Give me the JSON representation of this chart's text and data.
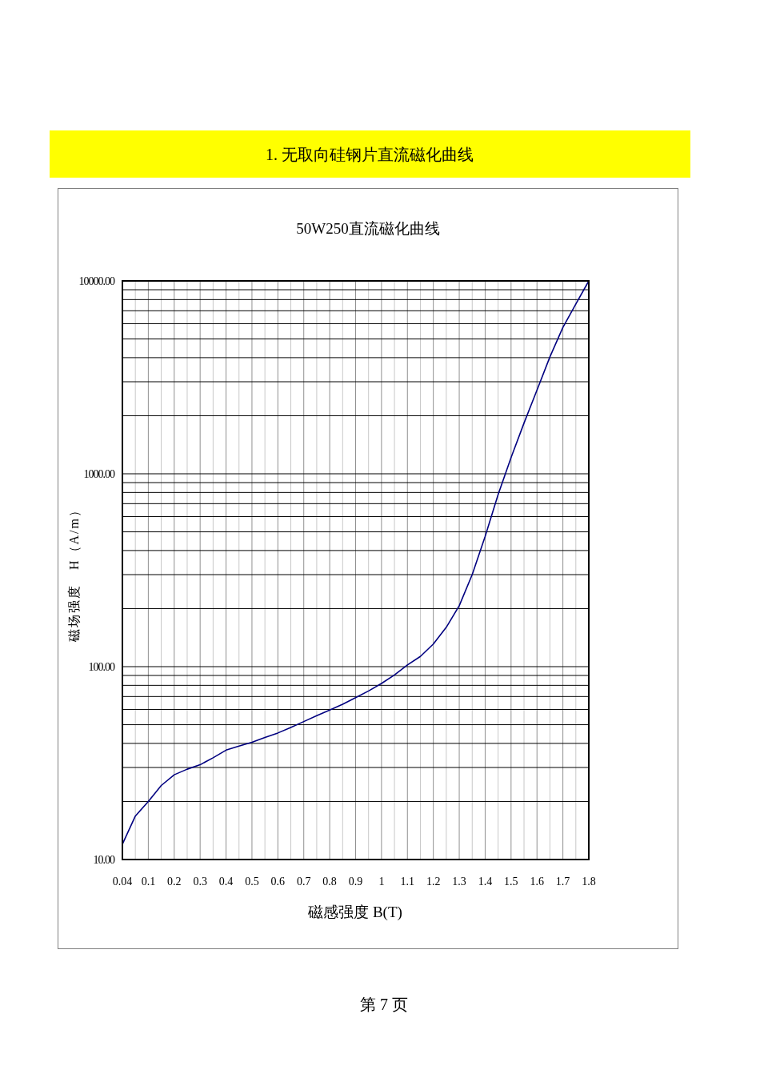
{
  "chart_data": {
    "type": "line",
    "title": "50W250直流磁化曲线",
    "xlabel": "磁感强度 B(T)",
    "ylabel": "磁场强度　H（A/m）",
    "categories": [
      "0.04",
      null,
      "0.1",
      null,
      "0.2",
      null,
      "0.3",
      null,
      "0.4",
      null,
      "0.5",
      null,
      "0.6",
      null,
      "0.7",
      null,
      "0.8",
      null,
      "0.9",
      null,
      "1",
      null,
      "1.1",
      null,
      "1.2",
      null,
      "1.3",
      null,
      "1.4",
      null,
      "1.5",
      null,
      "1.6",
      null,
      "1.7",
      null,
      "1.8"
    ],
    "series": [
      {
        "color": "#000080",
        "values": [
          12.0,
          16.8,
          20.0,
          24.2,
          27.5,
          29.4,
          31.0,
          33.7,
          36.9,
          38.7,
          40.5,
          42.9,
          45.3,
          48.4,
          51.9,
          55.7,
          59.6,
          63.8,
          69.1,
          74.8,
          81.8,
          90.6,
          102,
          113,
          131,
          160,
          207,
          300,
          474,
          780,
          1213,
          1832,
          2716,
          4040,
          5740,
          7590,
          10000
        ]
      }
    ],
    "log": "y",
    "ylim": [
      10,
      10000
    ],
    "yticks": [
      {
        "value": 10,
        "label": "10.00"
      },
      {
        "value": 20,
        "label": null
      },
      {
        "value": 30,
        "label": null
      },
      {
        "value": 40,
        "label": null
      },
      {
        "value": 50,
        "label": null
      },
      {
        "value": 60,
        "label": null
      },
      {
        "value": 70,
        "label": null
      },
      {
        "value": 80,
        "label": null
      },
      {
        "value": 90,
        "label": null
      },
      {
        "value": 100,
        "label": "100.00"
      },
      {
        "value": 200,
        "label": null
      },
      {
        "value": 300,
        "label": null
      },
      {
        "value": 400,
        "label": null
      },
      {
        "value": 500,
        "label": null
      },
      {
        "value": 600,
        "label": null
      },
      {
        "value": 700,
        "label": null
      },
      {
        "value": 800,
        "label": null
      },
      {
        "value": 900,
        "label": null
      },
      {
        "value": 1000,
        "label": "1000.00"
      },
      {
        "value": 2000,
        "label": null
      },
      {
        "value": 3000,
        "label": null
      },
      {
        "value": 4000,
        "label": null
      },
      {
        "value": 5000,
        "label": null
      },
      {
        "value": 6000,
        "label": null
      },
      {
        "value": 7000,
        "label": null
      },
      {
        "value": 8000,
        "label": null
      },
      {
        "value": 9000,
        "label": null
      },
      {
        "value": 10000,
        "label": "10000.00"
      }
    ],
    "grid": true,
    "annotations": [
      "1.  无取向硅钢片直流磁化曲线",
      "第 7 页"
    ]
  }
}
